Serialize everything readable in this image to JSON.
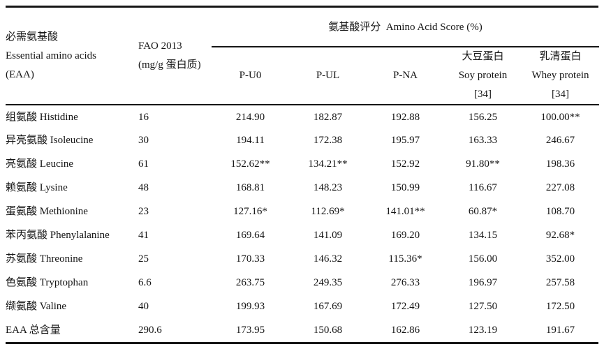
{
  "table": {
    "header": {
      "eaa": {
        "line1": "必需氨基酸",
        "line2": "Essential amino acids",
        "line3": "(EAA)"
      },
      "fao": {
        "line1": "FAO 2013",
        "line2": "(mg/g 蛋白质)"
      },
      "score_group": "氨基酸评分  Amino Acid Score (%)",
      "score_columns": [
        {
          "key": "p-u0",
          "lines": [
            "P-U0"
          ]
        },
        {
          "key": "p-ul",
          "lines": [
            "P-UL"
          ]
        },
        {
          "key": "p-na",
          "lines": [
            "P-NA"
          ]
        },
        {
          "key": "soy-protein-34",
          "lines": [
            "大豆蛋白",
            "Soy protein",
            "[34]"
          ]
        },
        {
          "key": "whey-protein-34",
          "lines": [
            "乳清蛋白",
            "Whey protein",
            "[34]"
          ]
        }
      ]
    },
    "rows": [
      {
        "name": "组氨酸 Histidine",
        "fao": "16",
        "values": [
          "214.90",
          "182.87",
          "192.88",
          "156.25",
          "100.00**"
        ]
      },
      {
        "name": "异亮氨酸 Isoleucine",
        "fao": "30",
        "values": [
          "194.11",
          "172.38",
          "195.97",
          "163.33",
          "246.67"
        ]
      },
      {
        "name": "亮氨酸 Leucine",
        "fao": "61",
        "values": [
          "152.62**",
          "134.21**",
          "152.92",
          "91.80**",
          "198.36"
        ]
      },
      {
        "name": "赖氨酸 Lysine",
        "fao": "48",
        "values": [
          "168.81",
          "148.23",
          "150.99",
          "116.67",
          "227.08"
        ]
      },
      {
        "name": "蛋氨酸 Methionine",
        "fao": "23",
        "values": [
          "127.16*",
          "112.69*",
          "141.01**",
          "60.87*",
          "108.70"
        ]
      },
      {
        "name": "苯丙氨酸 Phenylalanine",
        "fao": "41",
        "values": [
          "169.64",
          "141.09",
          "169.20",
          "134.15",
          "92.68*"
        ]
      },
      {
        "name": "苏氨酸 Threonine",
        "fao": "25",
        "values": [
          "170.33",
          "146.32",
          "115.36*",
          "156.00",
          "352.00"
        ]
      },
      {
        "name": "色氨酸 Tryptophan",
        "fao": "6.6",
        "values": [
          "263.75",
          "249.35",
          "276.33",
          "196.97",
          "257.58"
        ]
      },
      {
        "name": "缬氨酸 Valine",
        "fao": "40",
        "values": [
          "199.93",
          "167.69",
          "172.49",
          "127.50",
          "172.50"
        ]
      },
      {
        "name": "EAA 总含量",
        "fao": "290.6",
        "values": [
          "173.95",
          "150.68",
          "162.86",
          "123.19",
          "191.67"
        ]
      }
    ]
  }
}
